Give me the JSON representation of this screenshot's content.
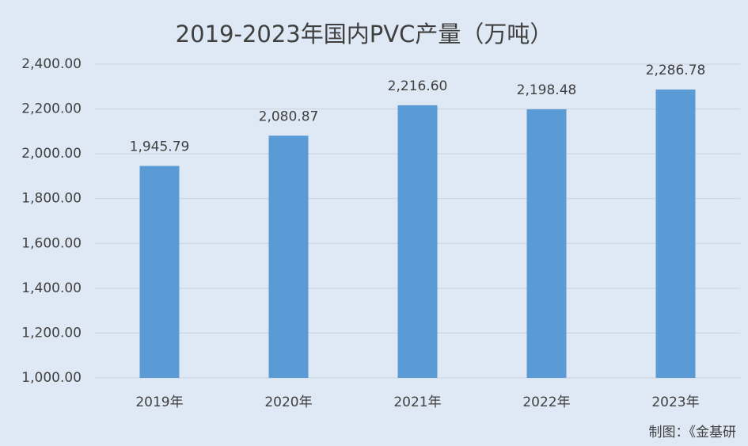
{
  "chart_data": {
    "type": "bar",
    "title": "2019-2023年国内PVC产量（万吨）",
    "categories": [
      "2019年",
      "2020年",
      "2021年",
      "2022年",
      "2023年"
    ],
    "values": [
      1945.79,
      2080.87,
      2216.6,
      2198.48,
      2286.78
    ],
    "value_labels": [
      "1,945.79",
      "2,080.87",
      "2,216.60",
      "2,198.48",
      "2,286.78"
    ],
    "color": "#5b9bd5",
    "ylim": [
      1000,
      2400
    ],
    "yticks": [
      {
        "value": 1000,
        "label": "1,000.00"
      },
      {
        "value": 1200,
        "label": "1,200.00"
      },
      {
        "value": 1400,
        "label": "1,400.00"
      },
      {
        "value": 1600,
        "label": "1,600.00"
      },
      {
        "value": 1800,
        "label": "1,800.00"
      },
      {
        "value": 2000,
        "label": "2,000.00"
      },
      {
        "value": 2200,
        "label": "2,200.00"
      },
      {
        "value": 2400,
        "label": "2,400.00"
      }
    ],
    "grid": true,
    "source": "制图：《金基研"
  }
}
